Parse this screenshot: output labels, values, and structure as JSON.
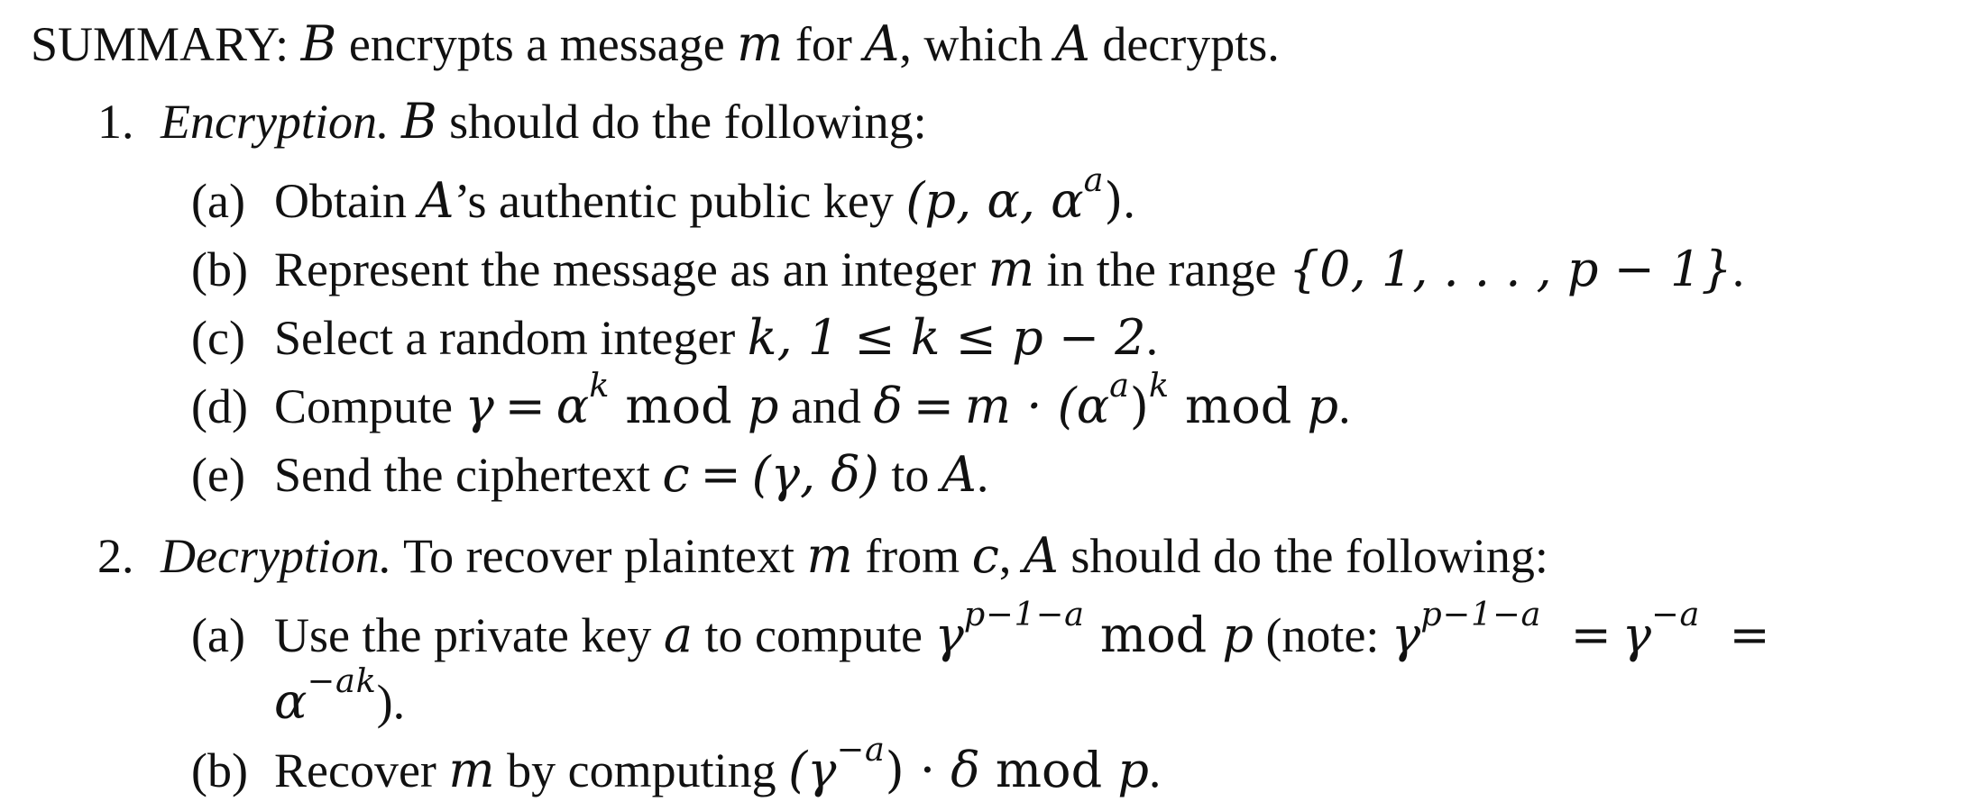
{
  "summary": {
    "label": "SUMMARY:",
    "B": "B",
    "t1": " encrypts a message ",
    "m": "m",
    "t2": " for ",
    "A": "A",
    "t3": ", which ",
    "A2": "A",
    "t4": " decrypts."
  },
  "encryption": {
    "number": "1.",
    "title": "Encryption.",
    "B": "B",
    "rest": " should do the following:",
    "a": {
      "label": "(a)",
      "t1": "Obtain ",
      "A": "A",
      "t2": "’s authentic public key ",
      "math": "(p, α, α",
      "sup": "a",
      "close": ")",
      "end": "."
    },
    "b": {
      "label": "(b)",
      "t1": "Represent the message as an integer ",
      "m": "m",
      "t2": " in the range ",
      "math": "{0, 1, . . . , p − 1}",
      "end": "."
    },
    "c": {
      "label": "(c)",
      "t1": "Select a random integer ",
      "k": "k",
      "math": ", 1 ≤ k ≤ p − 2",
      "end": "."
    },
    "d": {
      "label": "(d)",
      "t1": "Compute ",
      "gamma": "γ",
      "eq": "=",
      "alpha": "α",
      "sup_k": "k",
      "mod": " mod ",
      "p": "p",
      "and": " and ",
      "delta": "δ",
      "eq2": "=",
      "m_dot": "m · (α",
      "sup_a": "a",
      "close": ")",
      "sup_k2": "k",
      "mod2": " mod ",
      "p2": "p",
      "end": "."
    },
    "e": {
      "label": "(e)",
      "t1": "Send the ciphertext ",
      "c": "c",
      "eq": "=",
      "pair": "(γ, δ)",
      "t2": " to ",
      "A": "A",
      "end": "."
    }
  },
  "decryption": {
    "number": "2.",
    "title": "Decryption.",
    "t1": " To recover plaintext ",
    "m": "m",
    "t2": " from ",
    "c": "c",
    "t3": ", ",
    "A": "A",
    "t4": " should do the following:",
    "a": {
      "label": "(a)",
      "t1": "Use the private key ",
      "akey": "a",
      "t2": " to compute ",
      "gamma": "γ",
      "sup": "p−1−a",
      "mod": " mod ",
      "p": "p",
      "t3": " (note: ",
      "gamma2": "γ",
      "sup2": "p−1−a",
      "eq": "=",
      "gamma3": "γ",
      "sup3": "−a",
      "eq2": "=",
      "alpha": "α",
      "sup4": "−ak",
      "end": ")."
    },
    "b": {
      "label": "(b)",
      "t1": "Recover ",
      "m": "m",
      "t2": " by computing ",
      "open": "(γ",
      "sup": "−a",
      "close": ")",
      "dot": " · ",
      "delta": "δ",
      "mod": " mod ",
      "p": "p",
      "end": "."
    }
  }
}
